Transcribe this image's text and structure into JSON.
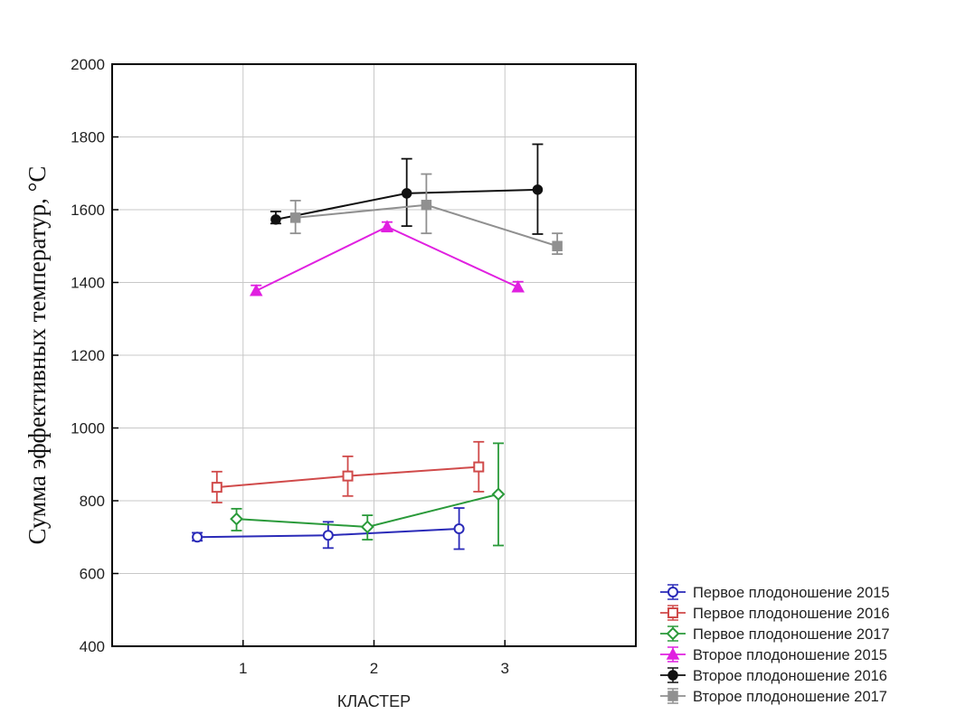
{
  "chart_data": {
    "type": "line",
    "xlabel": "КЛАСТЕР",
    "ylabel": "Сумма эффективных температур, °С",
    "ylim": [
      400,
      2000
    ],
    "yticks": [
      400,
      600,
      800,
      1000,
      1200,
      1400,
      1600,
      1800,
      2000
    ],
    "xlim": [
      0,
      4
    ],
    "xticks": [
      1,
      2,
      3
    ],
    "grid": true,
    "legend": "bottom-right",
    "series": [
      {
        "name": "Первое плодоношение 2015",
        "color": "#2a2ab8",
        "marker": "circle",
        "x": [
          0.65,
          1.65,
          2.65
        ],
        "y": [
          700,
          705,
          723
        ],
        "err_low": [
          690,
          670,
          667
        ],
        "err_high": [
          712,
          742,
          780
        ]
      },
      {
        "name": "Первое плодоношение 2016",
        "color": "#d04a4a",
        "marker": "square",
        "x": [
          0.8,
          1.8,
          2.8
        ],
        "y": [
          837,
          868,
          893
        ],
        "err_low": [
          795,
          813,
          825
        ],
        "err_high": [
          880,
          922,
          962
        ]
      },
      {
        "name": "Первое плодоношение 2017",
        "color": "#2a9a3a",
        "marker": "diamond",
        "x": [
          0.95,
          1.95,
          2.95
        ],
        "y": [
          750,
          728,
          818
        ],
        "err_low": [
          718,
          693,
          677
        ],
        "err_high": [
          778,
          760,
          958
        ]
      },
      {
        "name": "Второе плодоношение 2015",
        "color": "#e020e0",
        "marker": "triangle",
        "x": [
          1.1,
          2.1,
          3.1
        ],
        "y": [
          1377,
          1553,
          1387
        ],
        "err_low": [
          1365,
          1540,
          1375
        ],
        "err_high": [
          1392,
          1566,
          1402
        ]
      },
      {
        "name": "Второе плодоношение 2016",
        "color": "#111111",
        "marker": "circle-filled",
        "x": [
          1.25,
          2.25,
          3.25
        ],
        "y": [
          1573,
          1645,
          1655
        ],
        "err_low": [
          1562,
          1555,
          1533
        ],
        "err_high": [
          1595,
          1740,
          1780
        ]
      },
      {
        "name": "Второе плодоношение 2017",
        "color": "#909090",
        "marker": "square-filled",
        "x": [
          1.4,
          2.4,
          3.4
        ],
        "y": [
          1578,
          1613,
          1500
        ],
        "err_low": [
          1535,
          1535,
          1478
        ],
        "err_high": [
          1625,
          1698,
          1535
        ]
      }
    ]
  }
}
